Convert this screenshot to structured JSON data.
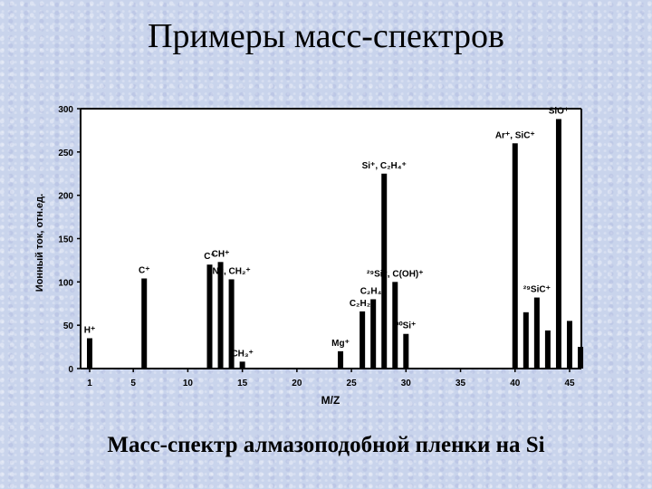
{
  "slide": {
    "title": "Примеры масс-спектров",
    "caption": "Масс-спектр алмазоподобной пленки на Si"
  },
  "chart_data": {
    "type": "bar",
    "xlabel": "M/Z",
    "ylabel": "Ионный ток, отн.ед.",
    "xticks": [
      1,
      5,
      10,
      15,
      20,
      25,
      30,
      35,
      40,
      45
    ],
    "yticks": [
      0,
      50,
      100,
      150,
      200,
      250,
      300
    ],
    "xlim": [
      0,
      46
    ],
    "ylim": [
      0,
      300
    ],
    "bars": [
      {
        "x": 1,
        "y": 35
      },
      {
        "x": 6,
        "y": 104
      },
      {
        "x": 12,
        "y": 120
      },
      {
        "x": 13,
        "y": 123
      },
      {
        "x": 14,
        "y": 103
      },
      {
        "x": 15,
        "y": 8
      },
      {
        "x": 24,
        "y": 20
      },
      {
        "x": 26,
        "y": 66
      },
      {
        "x": 27,
        "y": 80
      },
      {
        "x": 28,
        "y": 225
      },
      {
        "x": 29,
        "y": 100
      },
      {
        "x": 30,
        "y": 40
      },
      {
        "x": 40,
        "y": 260
      },
      {
        "x": 41,
        "y": 65
      },
      {
        "x": 42,
        "y": 82
      },
      {
        "x": 43,
        "y": 44
      },
      {
        "x": 44,
        "y": 288
      },
      {
        "x": 45,
        "y": 55
      },
      {
        "x": 46,
        "y": 25
      }
    ],
    "labels": [
      {
        "text": "H⁺",
        "x": 1,
        "y": 35
      },
      {
        "text": "C⁺",
        "x": 6,
        "y": 104
      },
      {
        "text": "C⁺",
        "x": 12,
        "y": 120
      },
      {
        "text": "CH⁺",
        "x": 13,
        "y": 123
      },
      {
        "text": "N⁺, CH₂⁺",
        "x": 14,
        "y": 103
      },
      {
        "text": "CH₃⁺",
        "x": 15,
        "y": 8
      },
      {
        "text": "Mg⁺",
        "x": 24,
        "y": 20
      },
      {
        "text": "C₂H₂⁺",
        "x": 26,
        "y": 66
      },
      {
        "text": "C₂H₄⁺",
        "x": 27,
        "y": 80
      },
      {
        "text": "Si⁺, C₂H₄⁺",
        "x": 28,
        "y": 225
      },
      {
        "text": "²⁹Si⁺, C(OH)⁺",
        "x": 29,
        "y": 100
      },
      {
        "text": "³⁰Si⁺",
        "x": 30,
        "y": 40
      },
      {
        "text": "Ar⁺, SiC⁺",
        "x": 40,
        "y": 260
      },
      {
        "text": "²⁹SiC⁺",
        "x": 42,
        "y": 82
      },
      {
        "text": "SiO⁺",
        "x": 44,
        "y": 288
      }
    ],
    "bar_color": "#000000"
  }
}
